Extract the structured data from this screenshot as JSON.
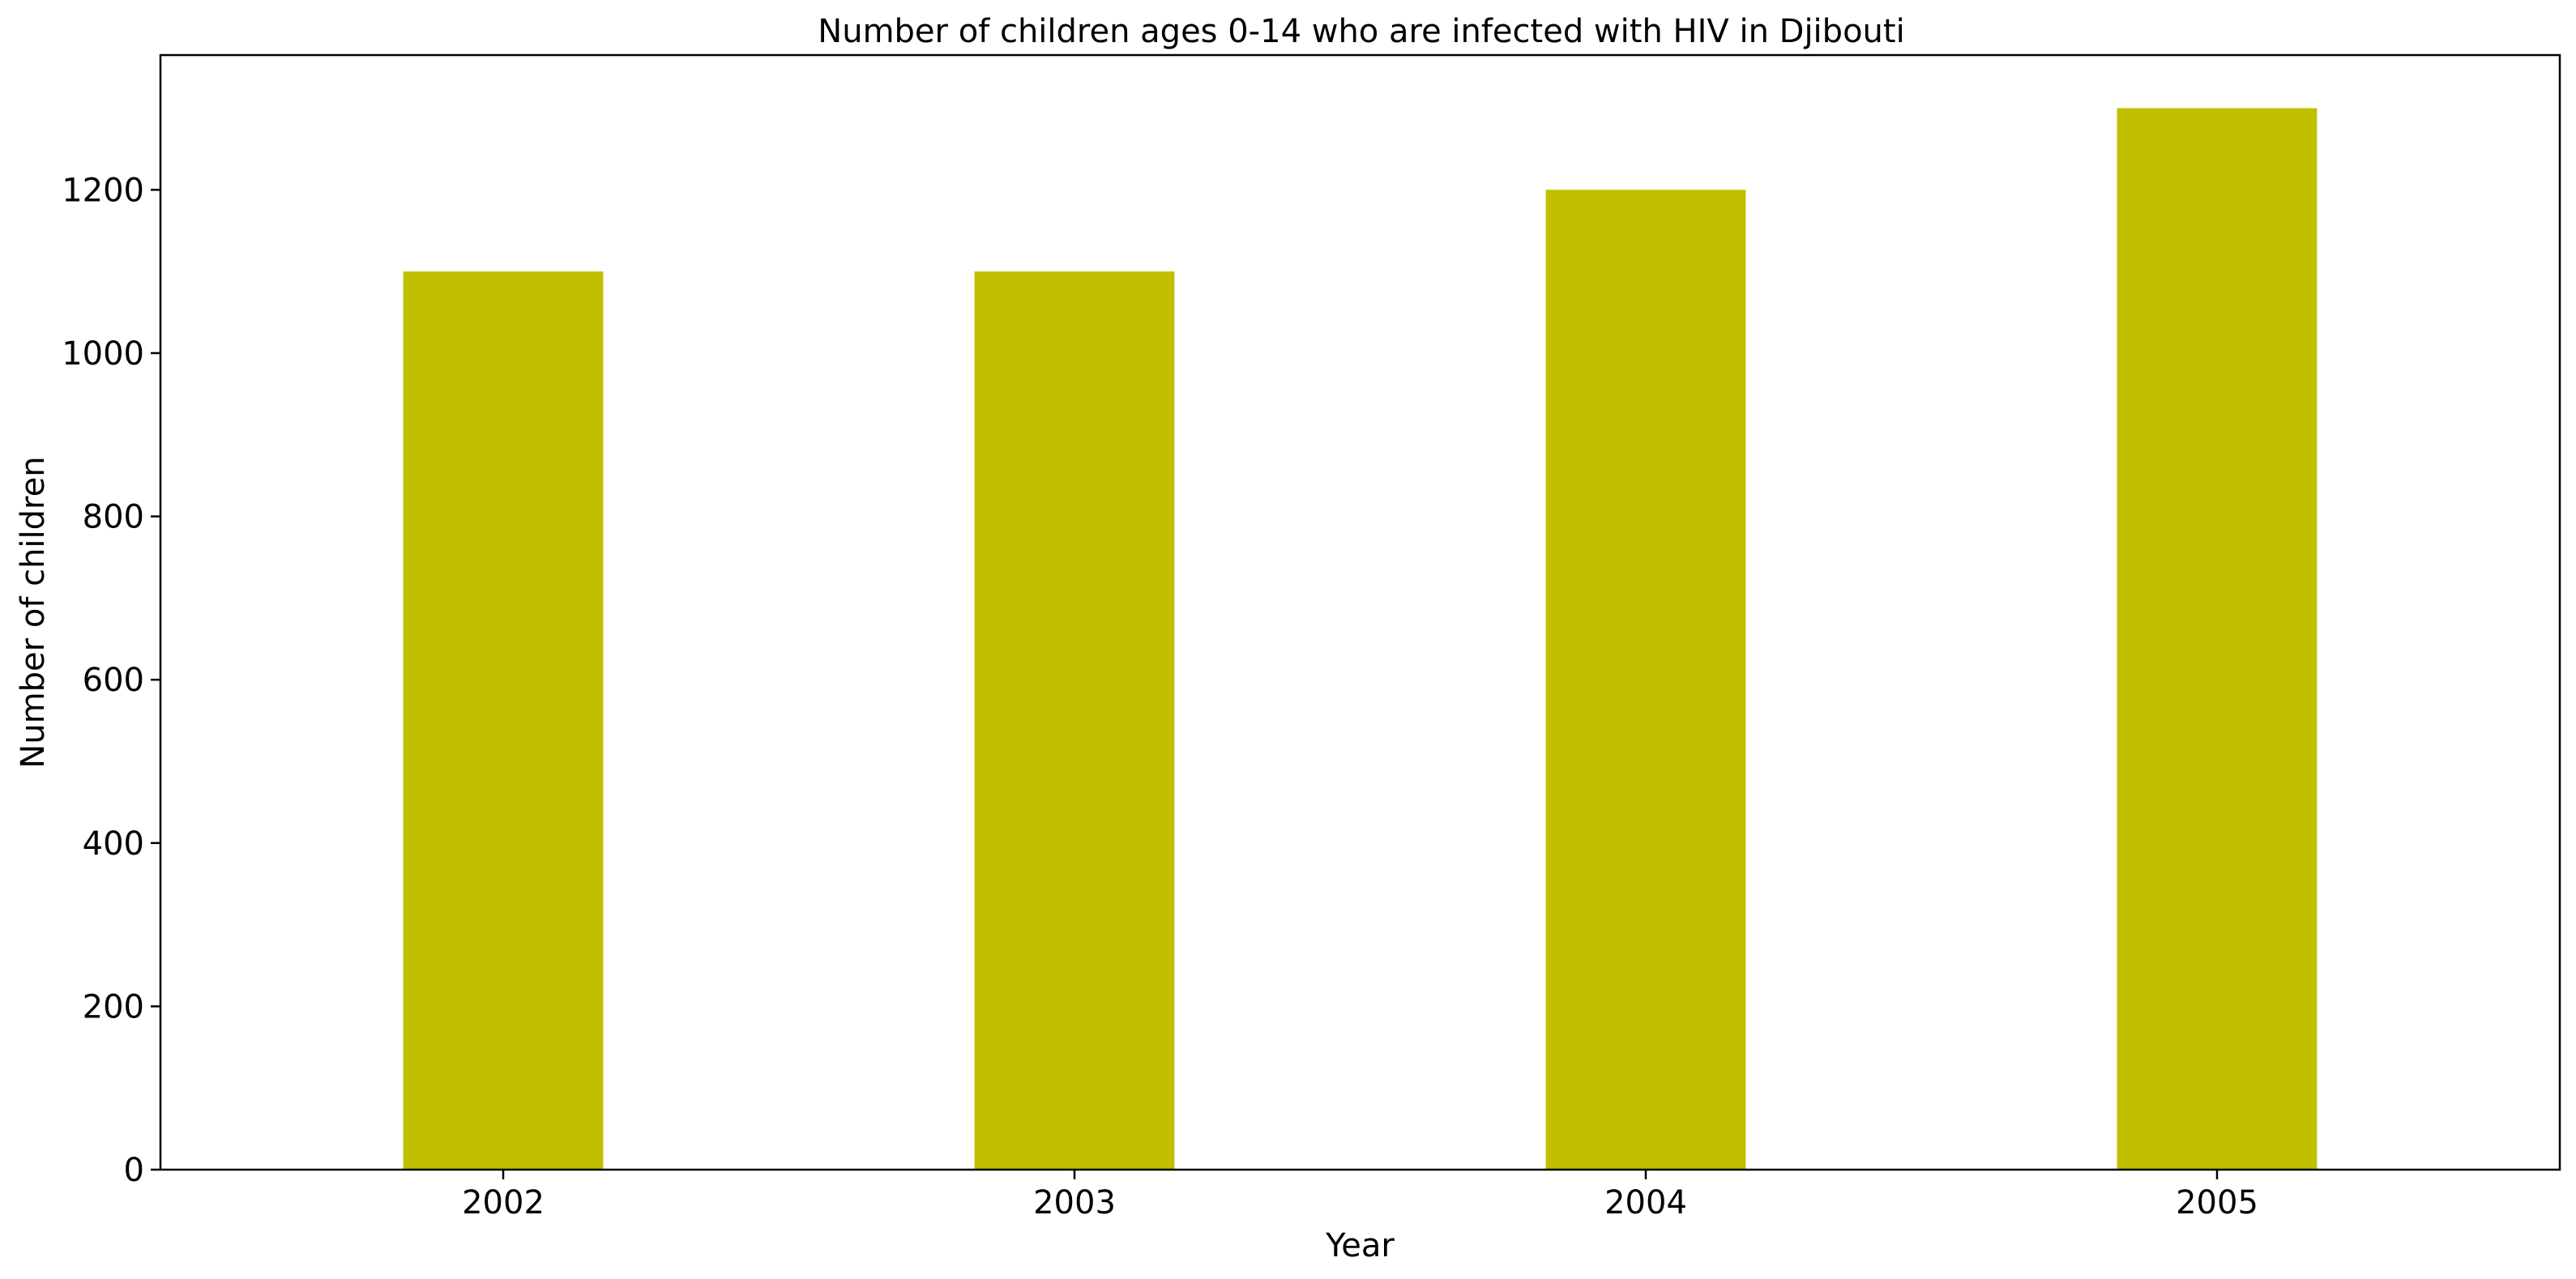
{
  "chart_data": {
    "type": "bar",
    "title": "Number of children ages 0-14 who are infected with HIV in Djibouti",
    "xlabel": "Year",
    "ylabel": "Number of children",
    "categories": [
      "2002",
      "2003",
      "2004",
      "2005"
    ],
    "values": [
      1100,
      1100,
      1200,
      1300
    ],
    "ylim": [
      0,
      1365
    ],
    "yticks": [
      0,
      200,
      400,
      600,
      800,
      1000,
      1200
    ],
    "grid": false,
    "bar_color": "#bfbf00"
  }
}
